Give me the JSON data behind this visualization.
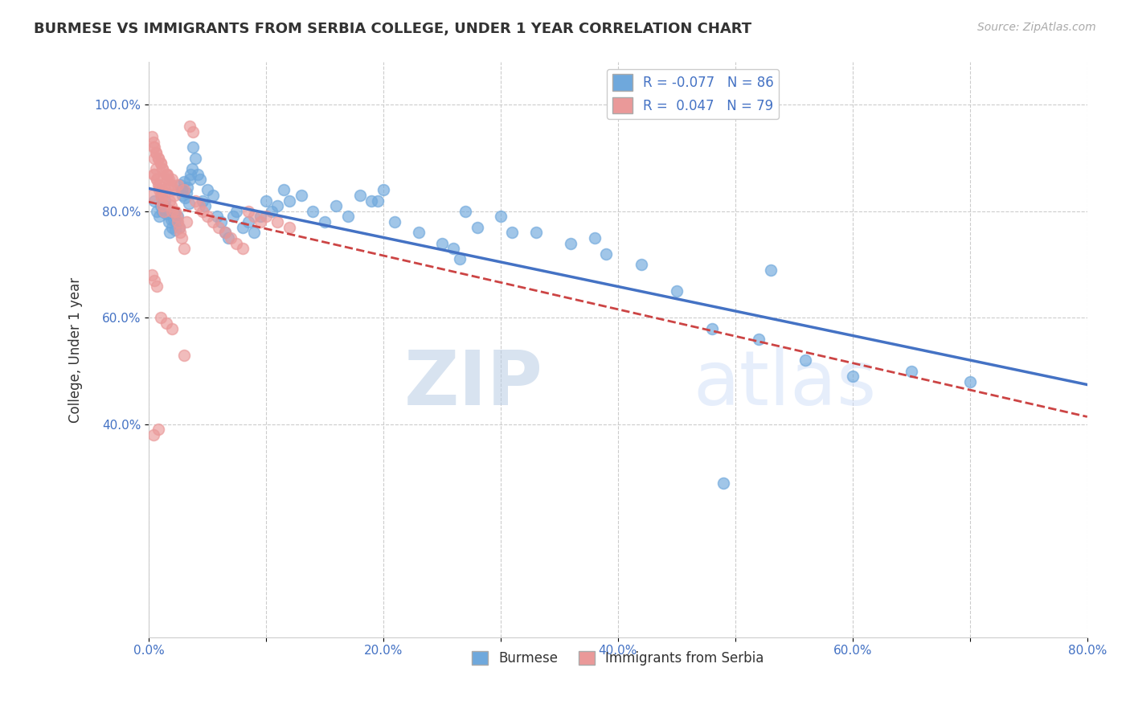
{
  "title": "BURMESE VS IMMIGRANTS FROM SERBIA COLLEGE, UNDER 1 YEAR CORRELATION CHART",
  "source": "Source: ZipAtlas.com",
  "ylabel": "College, Under 1 year",
  "xlim": [
    0.0,
    0.8
  ],
  "ylim": [
    0.0,
    1.08
  ],
  "xtick_labels": [
    "0.0%",
    "",
    "20.0%",
    "",
    "40.0%",
    "",
    "60.0%",
    "",
    "80.0%"
  ],
  "xtick_vals": [
    0.0,
    0.1,
    0.2,
    0.3,
    0.4,
    0.5,
    0.6,
    0.7,
    0.8
  ],
  "ytick_labels": [
    "40.0%",
    "60.0%",
    "80.0%",
    "100.0%"
  ],
  "ytick_vals": [
    0.4,
    0.6,
    0.8,
    1.0
  ],
  "burmese_R": -0.077,
  "burmese_N": 86,
  "serbia_R": 0.047,
  "serbia_N": 79,
  "burmese_color": "#6fa8dc",
  "serbia_color": "#ea9999",
  "burmese_line_color": "#4472c4",
  "serbia_line_color": "#cc4444",
  "watermark_zip": "ZIP",
  "watermark_atlas": "atlas",
  "burmese_x": [
    0.005,
    0.007,
    0.009,
    0.01,
    0.011,
    0.012,
    0.013,
    0.014,
    0.015,
    0.016,
    0.017,
    0.018,
    0.019,
    0.02,
    0.021,
    0.022,
    0.023,
    0.024,
    0.025,
    0.026,
    0.027,
    0.028,
    0.029,
    0.03,
    0.031,
    0.032,
    0.033,
    0.034,
    0.035,
    0.036,
    0.037,
    0.038,
    0.04,
    0.042,
    0.044,
    0.046,
    0.048,
    0.05,
    0.055,
    0.058,
    0.062,
    0.065,
    0.068,
    0.072,
    0.075,
    0.08,
    0.085,
    0.09,
    0.095,
    0.1,
    0.105,
    0.11,
    0.115,
    0.12,
    0.13,
    0.14,
    0.15,
    0.16,
    0.17,
    0.18,
    0.195,
    0.21,
    0.23,
    0.25,
    0.27,
    0.3,
    0.33,
    0.36,
    0.39,
    0.42,
    0.45,
    0.48,
    0.52,
    0.56,
    0.6,
    0.65,
    0.7,
    0.38,
    0.28,
    0.31,
    0.26,
    0.19,
    0.2,
    0.49,
    0.53,
    0.265
  ],
  "burmese_y": [
    0.82,
    0.8,
    0.79,
    0.81,
    0.83,
    0.8,
    0.81,
    0.82,
    0.795,
    0.805,
    0.78,
    0.76,
    0.785,
    0.77,
    0.785,
    0.795,
    0.765,
    0.78,
    0.79,
    0.77,
    0.85,
    0.84,
    0.83,
    0.855,
    0.825,
    0.835,
    0.845,
    0.815,
    0.86,
    0.87,
    0.88,
    0.92,
    0.9,
    0.87,
    0.86,
    0.82,
    0.81,
    0.84,
    0.83,
    0.79,
    0.78,
    0.76,
    0.75,
    0.79,
    0.8,
    0.77,
    0.78,
    0.76,
    0.79,
    0.82,
    0.8,
    0.81,
    0.84,
    0.82,
    0.83,
    0.8,
    0.78,
    0.81,
    0.79,
    0.83,
    0.82,
    0.78,
    0.76,
    0.74,
    0.8,
    0.79,
    0.76,
    0.74,
    0.72,
    0.7,
    0.65,
    0.58,
    0.56,
    0.52,
    0.49,
    0.5,
    0.48,
    0.75,
    0.77,
    0.76,
    0.73,
    0.82,
    0.84,
    0.29,
    0.69,
    0.71
  ],
  "serbia_x": [
    0.003,
    0.004,
    0.005,
    0.006,
    0.007,
    0.008,
    0.009,
    0.01,
    0.011,
    0.012,
    0.013,
    0.014,
    0.015,
    0.016,
    0.017,
    0.018,
    0.019,
    0.02,
    0.021,
    0.022,
    0.023,
    0.024,
    0.025,
    0.026,
    0.027,
    0.028,
    0.03,
    0.032,
    0.035,
    0.038,
    0.04,
    0.043,
    0.046,
    0.05,
    0.055,
    0.06,
    0.065,
    0.07,
    0.075,
    0.08,
    0.085,
    0.09,
    0.095,
    0.1,
    0.11,
    0.12,
    0.004,
    0.006,
    0.008,
    0.01,
    0.012,
    0.005,
    0.007,
    0.009,
    0.011,
    0.013,
    0.015,
    0.017,
    0.019,
    0.003,
    0.004,
    0.005,
    0.006,
    0.008,
    0.01,
    0.012,
    0.016,
    0.02,
    0.025,
    0.03,
    0.003,
    0.005,
    0.007,
    0.01,
    0.015,
    0.02,
    0.03,
    0.008,
    0.004
  ],
  "serbia_y": [
    0.83,
    0.87,
    0.9,
    0.88,
    0.86,
    0.85,
    0.84,
    0.83,
    0.82,
    0.81,
    0.8,
    0.84,
    0.87,
    0.86,
    0.85,
    0.82,
    0.81,
    0.8,
    0.84,
    0.83,
    0.8,
    0.79,
    0.78,
    0.77,
    0.76,
    0.75,
    0.73,
    0.78,
    0.96,
    0.95,
    0.82,
    0.81,
    0.8,
    0.79,
    0.78,
    0.77,
    0.76,
    0.75,
    0.74,
    0.73,
    0.8,
    0.79,
    0.78,
    0.79,
    0.78,
    0.77,
    0.92,
    0.91,
    0.9,
    0.89,
    0.88,
    0.87,
    0.86,
    0.85,
    0.84,
    0.83,
    0.87,
    0.86,
    0.85,
    0.94,
    0.93,
    0.92,
    0.91,
    0.9,
    0.89,
    0.88,
    0.87,
    0.86,
    0.85,
    0.84,
    0.68,
    0.67,
    0.66,
    0.6,
    0.59,
    0.58,
    0.53,
    0.39,
    0.38
  ]
}
